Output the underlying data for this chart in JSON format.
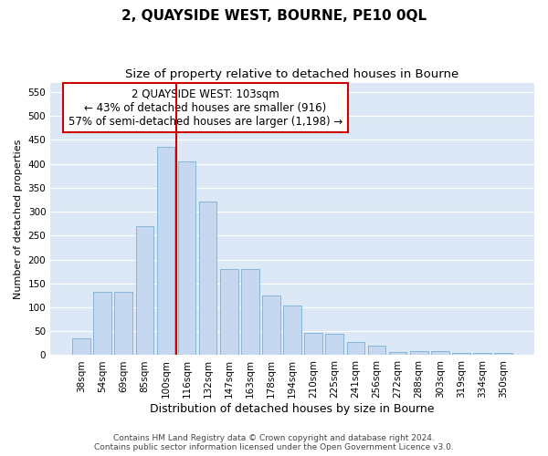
{
  "title": "2, QUAYSIDE WEST, BOURNE, PE10 0QL",
  "subtitle": "Size of property relative to detached houses in Bourne",
  "xlabel": "Distribution of detached houses by size in Bourne",
  "ylabel": "Number of detached properties",
  "categories": [
    "38sqm",
    "54sqm",
    "69sqm",
    "85sqm",
    "100sqm",
    "116sqm",
    "132sqm",
    "147sqm",
    "163sqm",
    "178sqm",
    "194sqm",
    "210sqm",
    "225sqm",
    "241sqm",
    "256sqm",
    "272sqm",
    "288sqm",
    "303sqm",
    "319sqm",
    "334sqm",
    "350sqm"
  ],
  "values": [
    35,
    133,
    133,
    270,
    435,
    405,
    322,
    181,
    181,
    125,
    103,
    46,
    44,
    28,
    20,
    7,
    8,
    8,
    5,
    5,
    5
  ],
  "bar_color": "#c5d8f0",
  "bar_edge_color": "#7bafd4",
  "vline_color": "#cc0000",
  "vline_pos": 4.5,
  "annotation_line1": "2 QUAYSIDE WEST: 103sqm",
  "annotation_line2": "← 43% of detached houses are smaller (916)",
  "annotation_line3": "57% of semi-detached houses are larger (1,198) →",
  "annotation_box_facecolor": "#ffffff",
  "annotation_box_edgecolor": "#cc0000",
  "ylim": [
    0,
    570
  ],
  "yticks": [
    0,
    50,
    100,
    150,
    200,
    250,
    300,
    350,
    400,
    450,
    500,
    550
  ],
  "footer_line1": "Contains HM Land Registry data © Crown copyright and database right 2024.",
  "footer_line2": "Contains public sector information licensed under the Open Government Licence v3.0.",
  "fig_facecolor": "#ffffff",
  "plot_bg_color": "#dce8f5",
  "title_fontsize": 11,
  "subtitle_fontsize": 9.5,
  "xlabel_fontsize": 9,
  "ylabel_fontsize": 8,
  "tick_fontsize": 7.5,
  "annotation_fontsize": 8.5,
  "footer_fontsize": 6.5
}
